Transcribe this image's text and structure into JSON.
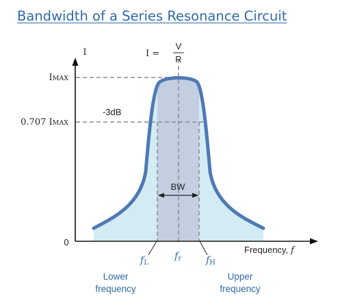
{
  "title": "Bandwidth of a Series Resonance Circuit",
  "y_axis_label": "I",
  "x_axis_label": "Frequency,",
  "x_axis_symbol": "f",
  "origin_label": "0",
  "formula": {
    "lhs": "I =",
    "numerator": "V",
    "denominator": "R"
  },
  "imax_label": {
    "main": "I",
    "sub": "MAX"
  },
  "half_power_label": {
    "coef": "0.707 I",
    "sub": "MAX"
  },
  "db_label": "-3dB",
  "bandwidth_label": "BW",
  "freq_markers": {
    "lower": {
      "main": "f",
      "sub": "L"
    },
    "resonant": {
      "main": "f",
      "sub": "r"
    },
    "upper": {
      "main": "f",
      "sub": "H"
    }
  },
  "lower_frequency": [
    "Lower",
    "frequency"
  ],
  "upper_frequency": [
    "Upper",
    "frequency"
  ],
  "colors": {
    "title": "#2e6aa6",
    "curve": "#4f79b5",
    "fill_under_curve": "#d3ebf3",
    "bandwidth_region": "#c3cfe1",
    "labels_blue": "#2e6aa6",
    "axis": "#111111",
    "dashed": "#8a8a8a"
  }
}
